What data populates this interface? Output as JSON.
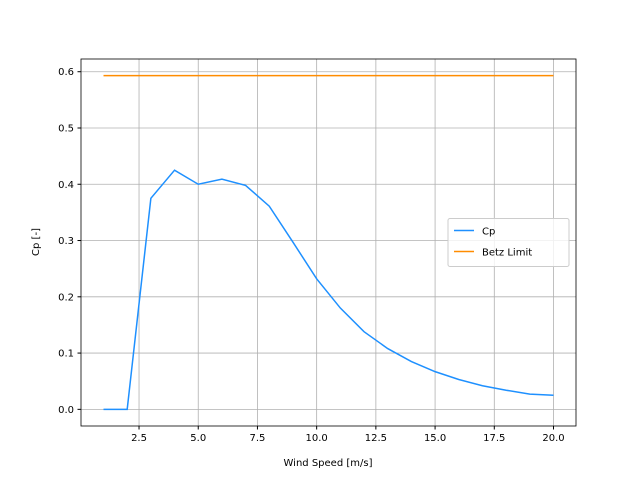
{
  "chart_data": {
    "type": "line",
    "x_label": "Wind Speed [m/s]",
    "y_label": "Cp [-]",
    "series": [
      {
        "name": "Cp",
        "color": "#1e90ff",
        "x": [
          1,
          2,
          3,
          4,
          5,
          6,
          7,
          8,
          9,
          10,
          11,
          12,
          13,
          14,
          15,
          16,
          17,
          18,
          19,
          20
        ],
        "values": [
          0,
          0,
          0.375,
          0.425,
          0.4,
          0.409,
          0.398,
          0.361,
          0.297,
          0.232,
          0.18,
          0.138,
          0.108,
          0.085,
          0.067,
          0.053,
          0.042,
          0.034,
          0.027,
          0.025
        ]
      },
      {
        "name": "Betz Limit",
        "color": "#ff8c00",
        "x": [
          1,
          20
        ],
        "values": [
          0.593,
          0.593
        ]
      }
    ],
    "xlim": [
      0.05,
      20.95
    ],
    "xticks": [
      {
        "value": 2.5,
        "label": "2.5"
      },
      {
        "value": 5,
        "label": "5.0"
      },
      {
        "value": 7.5,
        "label": "7.5"
      },
      {
        "value": 10,
        "label": "10.0"
      },
      {
        "value": 12.5,
        "label": "12.5"
      },
      {
        "value": 15,
        "label": "15.0"
      },
      {
        "value": 17.5,
        "label": "17.5"
      },
      {
        "value": 20,
        "label": "20.0"
      }
    ],
    "ylim": [
      -0.0296,
      0.6226
    ],
    "yticks": [
      {
        "value": 0,
        "label": "0.0"
      },
      0.1,
      0.2,
      0.3,
      0.4,
      0.5,
      0.6
    ],
    "grid": true,
    "legend": "center right"
  }
}
